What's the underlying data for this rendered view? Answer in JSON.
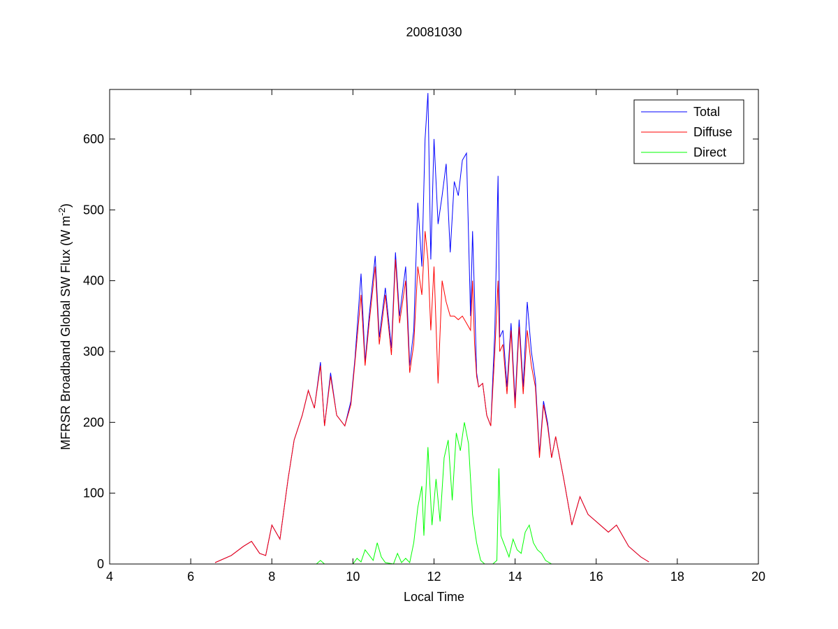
{
  "chart_data": {
    "type": "line",
    "title": "20081030",
    "xlabel": "Local Time",
    "ylabel": "MFRSR Broadband Global SW Flux (W m",
    "ylabel_sup": "-2",
    "ylabel_close": ")",
    "xlim": [
      4,
      20
    ],
    "ylim": [
      0,
      670
    ],
    "xticks": [
      4,
      6,
      8,
      10,
      12,
      14,
      16,
      18,
      20
    ],
    "yticks": [
      0,
      100,
      200,
      300,
      400,
      500,
      600
    ],
    "grid": false,
    "legend_position": "top-right",
    "colors": {
      "Total": "#0000ff",
      "Diffuse": "#ff0000",
      "Direct": "#00ff00"
    },
    "series": [
      {
        "name": "Total",
        "x": [
          6.6,
          7.0,
          7.3,
          7.5,
          7.7,
          7.85,
          8.0,
          8.2,
          8.4,
          8.55,
          8.75,
          8.9,
          9.05,
          9.2,
          9.3,
          9.45,
          9.6,
          9.8,
          9.95,
          10.05,
          10.2,
          10.3,
          10.4,
          10.55,
          10.65,
          10.8,
          10.95,
          11.05,
          11.15,
          11.3,
          11.4,
          11.5,
          11.6,
          11.7,
          11.78,
          11.85,
          11.92,
          12.0,
          12.1,
          12.2,
          12.3,
          12.4,
          12.5,
          12.6,
          12.7,
          12.8,
          12.9,
          12.95,
          13.0,
          13.05,
          13.1,
          13.2,
          13.3,
          13.4,
          13.5,
          13.58,
          13.62,
          13.7,
          13.8,
          13.9,
          14.0,
          14.1,
          14.2,
          14.3,
          14.4,
          14.5,
          14.6,
          14.7,
          14.8,
          14.9,
          15.0,
          15.2,
          15.4,
          15.6,
          15.8,
          16.0,
          16.3,
          16.5,
          16.8,
          17.1,
          17.3
        ],
        "values": [
          2,
          12,
          25,
          32,
          15,
          12,
          55,
          35,
          120,
          175,
          210,
          245,
          220,
          285,
          195,
          270,
          210,
          195,
          230,
          290,
          410,
          285,
          350,
          435,
          320,
          390,
          305,
          440,
          350,
          420,
          280,
          330,
          510,
          420,
          600,
          665,
          430,
          600,
          480,
          520,
          565,
          440,
          540,
          520,
          570,
          580,
          350,
          470,
          375,
          270,
          250,
          255,
          210,
          195,
          330,
          548,
          320,
          330,
          250,
          340,
          230,
          345,
          250,
          370,
          300,
          260,
          155,
          230,
          200,
          150,
          180,
          120,
          55,
          95,
          70,
          60,
          45,
          55,
          25,
          10,
          3
        ]
      },
      {
        "name": "Diffuse",
        "x": [
          6.6,
          7.0,
          7.3,
          7.5,
          7.7,
          7.85,
          8.0,
          8.2,
          8.4,
          8.55,
          8.75,
          8.9,
          9.05,
          9.2,
          9.3,
          9.45,
          9.6,
          9.8,
          9.95,
          10.05,
          10.2,
          10.3,
          10.4,
          10.55,
          10.65,
          10.8,
          10.95,
          11.05,
          11.15,
          11.3,
          11.4,
          11.5,
          11.6,
          11.7,
          11.78,
          11.85,
          11.92,
          12.0,
          12.1,
          12.2,
          12.3,
          12.4,
          12.5,
          12.6,
          12.7,
          12.8,
          12.9,
          12.95,
          13.0,
          13.05,
          13.1,
          13.2,
          13.3,
          13.4,
          13.5,
          13.58,
          13.62,
          13.7,
          13.8,
          13.9,
          14.0,
          14.1,
          14.2,
          14.3,
          14.4,
          14.5,
          14.6,
          14.7,
          14.8,
          14.9,
          15.0,
          15.2,
          15.4,
          15.6,
          15.8,
          16.0,
          16.3,
          16.5,
          16.8,
          17.1,
          17.3
        ],
        "values": [
          2,
          12,
          25,
          32,
          15,
          12,
          55,
          35,
          120,
          175,
          210,
          245,
          220,
          280,
          195,
          265,
          210,
          195,
          225,
          285,
          380,
          280,
          340,
          420,
          310,
          380,
          295,
          430,
          340,
          400,
          270,
          310,
          420,
          380,
          470,
          430,
          330,
          420,
          255,
          400,
          370,
          350,
          350,
          345,
          350,
          340,
          330,
          400,
          310,
          265,
          250,
          255,
          210,
          195,
          300,
          400,
          300,
          310,
          240,
          330,
          220,
          335,
          240,
          330,
          280,
          250,
          150,
          225,
          195,
          150,
          180,
          120,
          55,
          95,
          70,
          60,
          45,
          55,
          25,
          10,
          3
        ]
      },
      {
        "name": "Direct",
        "x": [
          6.6,
          9.1,
          9.2,
          9.3,
          10.0,
          10.1,
          10.2,
          10.3,
          10.5,
          10.6,
          10.7,
          10.8,
          11.0,
          11.1,
          11.2,
          11.3,
          11.4,
          11.5,
          11.6,
          11.7,
          11.75,
          11.85,
          11.95,
          12.05,
          12.15,
          12.25,
          12.35,
          12.45,
          12.55,
          12.65,
          12.75,
          12.85,
          12.95,
          13.05,
          13.15,
          13.25,
          13.45,
          13.55,
          13.6,
          13.65,
          13.75,
          13.85,
          13.95,
          14.05,
          14.15,
          14.25,
          14.35,
          14.45,
          14.55,
          14.65,
          14.75,
          14.9,
          15.1,
          17.3
        ],
        "values": [
          0,
          0,
          5,
          0,
          0,
          8,
          3,
          20,
          5,
          30,
          10,
          2,
          0,
          15,
          2,
          8,
          2,
          30,
          80,
          110,
          40,
          165,
          55,
          120,
          60,
          150,
          175,
          90,
          185,
          160,
          200,
          170,
          70,
          30,
          5,
          0,
          0,
          5,
          135,
          40,
          25,
          10,
          35,
          20,
          15,
          45,
          55,
          30,
          20,
          15,
          5,
          0,
          0,
          0
        ]
      }
    ]
  }
}
